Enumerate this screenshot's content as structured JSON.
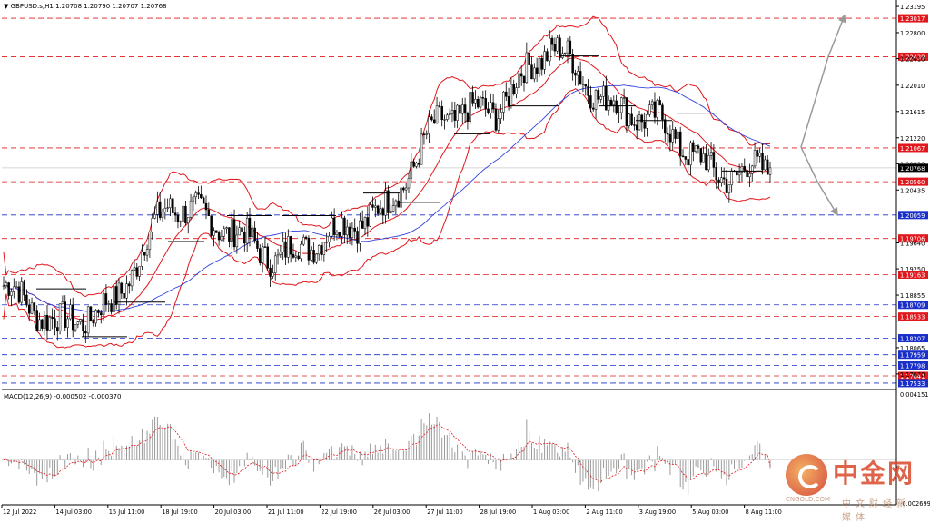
{
  "symbol_info": "GBPUSD.s,H1  1.20708 1.20790 1.20707 1.20768",
  "macd_info": "MACD(12,26,9) -0.000502 -0.000370",
  "colors": {
    "background": "#ffffff",
    "bollinger": "#e0171c",
    "ma_blue": "#3444e0",
    "candle": "#000000",
    "resistance_line": "#e0171c",
    "support_line": "#1a2fc9",
    "current_price_box": "#000000",
    "arrow": "#9a9a9a",
    "macd_bars": "#9a9a9a",
    "macd_signal": "#e0171c"
  },
  "price_axis": {
    "labels": [
      {
        "price": 1.23195,
        "text": "1.23195"
      },
      {
        "price": 1.228,
        "text": "1.22800"
      },
      {
        "price": 1.2241,
        "text": "1.22410"
      },
      {
        "price": 1.2201,
        "text": "1.22010"
      },
      {
        "price": 1.21615,
        "text": "1.21615"
      },
      {
        "price": 1.2122,
        "text": "1.21220"
      },
      {
        "price": 1.2083,
        "text": "1.20830"
      },
      {
        "price": 1.20435,
        "text": "1.20435"
      },
      {
        "price": 1.1964,
        "text": "1.19640"
      },
      {
        "price": 1.1925,
        "text": "1.19250"
      },
      {
        "price": 1.18855,
        "text": "1.18855"
      },
      {
        "price": 1.18065,
        "text": "1.18065"
      },
      {
        "price": 1.1767,
        "text": "1.17670"
      }
    ],
    "levels": [
      {
        "price": 1.23017,
        "text": "1.23017",
        "kind": "resistance"
      },
      {
        "price": 1.22439,
        "text": "1.22439",
        "kind": "resistance"
      },
      {
        "price": 1.21067,
        "text": "1.21067",
        "kind": "resistance"
      },
      {
        "price": 1.20768,
        "text": "1.20768",
        "kind": "current"
      },
      {
        "price": 1.2056,
        "text": "1.20560",
        "kind": "resistance"
      },
      {
        "price": 1.20059,
        "text": "1.20059",
        "kind": "support"
      },
      {
        "price": 1.19706,
        "text": "1.19706",
        "kind": "resistance"
      },
      {
        "price": 1.19163,
        "text": "1.19163",
        "kind": "resistance"
      },
      {
        "price": 1.18709,
        "text": "1.18709",
        "kind": "support"
      },
      {
        "price": 1.18533,
        "text": "1.18533",
        "kind": "resistance"
      },
      {
        "price": 1.18207,
        "text": "1.18207",
        "kind": "support"
      },
      {
        "price": 1.17959,
        "text": "1.17959",
        "kind": "support"
      },
      {
        "price": 1.17798,
        "text": "1.17798",
        "kind": "support"
      },
      {
        "price": 1.17641,
        "text": "1.17641",
        "kind": "resistance"
      },
      {
        "price": 1.17533,
        "text": "1.17533",
        "kind": "support"
      }
    ]
  },
  "macd_axis": {
    "labels": [
      {
        "value": 0.004151,
        "text": "0.004151"
      },
      {
        "value": -0.002699,
        "text": "-0.002699"
      }
    ]
  },
  "time_axis": {
    "labels": [
      "12 Jul 2022",
      "14 Jul 03:00",
      "15 Jul 11:00",
      "18 Jul 19:00",
      "20 Jul 03:00",
      "21 Jul 11:00",
      "22 Jul 19:00",
      "26 Jul 03:00",
      "27 Jul 11:00",
      "28 Jul 19:00",
      "1 Aug 03:00",
      "2 Aug 11:00",
      "3 Aug 19:00",
      "5 Aug 03:00",
      "8 Aug 11:00"
    ]
  },
  "chart_data": {
    "type": "candlestick",
    "symbol": "GBPUSD.s",
    "timeframe": "H1",
    "last_ohlc": {
      "open": 1.20708,
      "high": 1.2079,
      "low": 1.20707,
      "close": 1.20768
    },
    "ylim": [
      1.1745,
      1.2325
    ],
    "close_path": [
      {
        "time": "12 Jul 2022",
        "close": 1.19
      },
      {
        "time": "14 Jul 03:00",
        "close": 1.184
      },
      {
        "time": "15 Jul 11:00",
        "close": 1.187
      },
      {
        "time": "18 Jul 19:00",
        "close": 1.2025
      },
      {
        "time": "20 Jul 03:00",
        "close": 1.199
      },
      {
        "time": "21 Jul 11:00",
        "close": 1.194
      },
      {
        "time": "22 Jul 19:00",
        "close": 1.198
      },
      {
        "time": "26 Jul 03:00",
        "close": 1.2015
      },
      {
        "time": "27 Jul 11:00",
        "close": 1.2155
      },
      {
        "time": "28 Jul 19:00",
        "close": 1.2165
      },
      {
        "time": "1 Aug 03:00",
        "close": 1.2265
      },
      {
        "time": "2 Aug 11:00",
        "close": 1.2175
      },
      {
        "time": "3 Aug 19:00",
        "close": 1.2145
      },
      {
        "time": "5 Aug 03:00",
        "close": 1.2065
      },
      {
        "time": "8 Aug 11:00",
        "close": 1.2077
      }
    ],
    "macd": {
      "name": "MACD(12,26,9)",
      "main": -0.000502,
      "signal": -0.00037,
      "ylim": [
        -0.002699,
        0.004151
      ]
    }
  },
  "watermark": {
    "cn": "中金网",
    "url": "CNGOLD.COM",
    "sub": "中文财经新媒体"
  }
}
